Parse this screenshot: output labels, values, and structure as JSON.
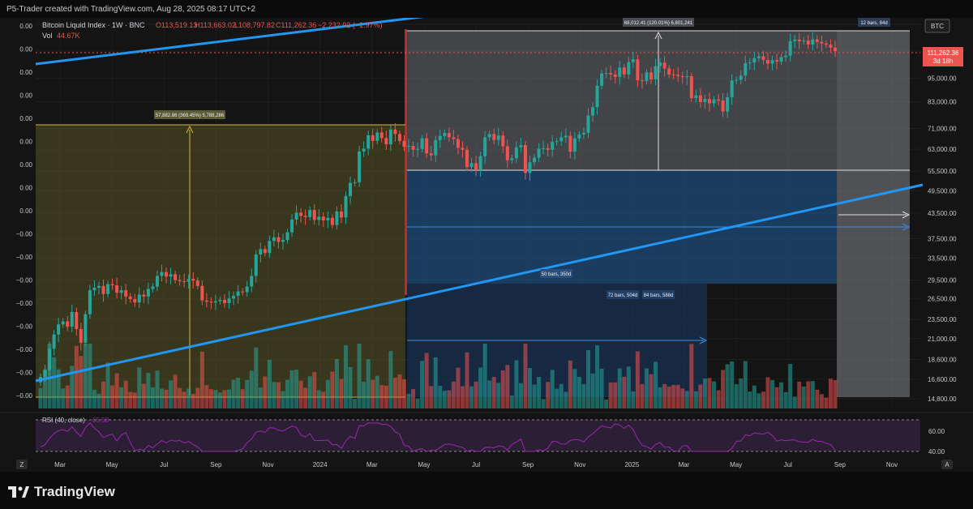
{
  "header": {
    "caption": "P5-Trader created with TradingView.com, Aug 28, 2025 08:17 UTC+2"
  },
  "legend": {
    "symbol": "Bitcoin Liquid Index · 1W · BNC",
    "open": "O113,519.13",
    "high": "H113,663.02",
    "low": "L108,797.82",
    "close": "C111,262.36",
    "change": "−2,232.92 (−1.97%)",
    "vol_label": "Vol",
    "vol_value": "44.67K"
  },
  "price_tag": {
    "ticker": "BTC",
    "price": "111,262.36",
    "countdown": "3d 18h"
  },
  "left_axis_labels": [
    "0.00",
    "0.00",
    "0.00",
    "0.00",
    "0.00",
    "0.00",
    "0.00",
    "0.00",
    "0.00",
    "−0.00",
    "−0.00",
    "−0.00",
    "−0.00",
    "−0.00",
    "−0.00",
    "−0.00",
    "−0.00"
  ],
  "rsi": {
    "label": "RSI (40, close)",
    "value": "65.58",
    "ticks": [
      "60.00",
      "40.00"
    ]
  },
  "measure_labels": {
    "left_box": "57,882.86 (369.45%) 5,788,286",
    "right_box": "68,012.41 (120.01%) 6,801,241",
    "bars_top": "12 bars, 84d",
    "bars_mid": "50 bars, 350d",
    "bars_low_a": "72 bars, 504d",
    "bars_low_b": "84 bars, 588d"
  },
  "footer": {
    "brand": "TradingView",
    "z_button": "Z",
    "a_button": "A"
  },
  "colors": {
    "up": "#26a69a",
    "down": "#ef5350",
    "trend": "#2196f3",
    "yellow_box": "#b5a13a",
    "rsi_line": "#9c27b0"
  },
  "chart_data": {
    "type": "candlestick",
    "title": "Bitcoin Liquid Index · 1W · BNC",
    "yscale": "log",
    "ylim": [
      14000,
      130000
    ],
    "y_ticks": [
      130000,
      111262.36,
      95000,
      83000,
      71000,
      63000,
      55500,
      49500,
      43500,
      37500,
      33500,
      29500,
      26500,
      23500,
      21000,
      18600,
      16600,
      14800
    ],
    "y_tick_labels": [
      "",
      "111,262.36",
      "95,000.00",
      "83,000.00",
      "71,000.00",
      "63,000.00",
      "55,500.00",
      "49,500.00",
      "43,500.00",
      "37,500.00",
      "33,500.00",
      "29,500.00",
      "26,500.00",
      "23,500.00",
      "21,000.00",
      "18,600.00",
      "16,600.00",
      "14,800.00"
    ],
    "x_tick_labels": [
      "Mar",
      "May",
      "Jul",
      "Sep",
      "Nov",
      "2024",
      "Mar",
      "May",
      "Jul",
      "Sep",
      "Nov",
      "2025",
      "Mar",
      "May",
      "Jul",
      "Sep",
      "Nov"
    ],
    "closes": [
      16800,
      17500,
      19800,
      21500,
      22800,
      23200,
      22500,
      24500,
      22200,
      20500,
      24200,
      27800,
      28200,
      28500,
      27200,
      28800,
      28600,
      27400,
      27800,
      26800,
      26400,
      25900,
      27100,
      26800,
      28000,
      28400,
      30200,
      30900,
      30100,
      30500,
      29500,
      29300,
      29200,
      29700,
      29400,
      28500,
      26200,
      26000,
      25900,
      26100,
      26300,
      25800,
      26500,
      26900,
      27600,
      27500,
      28400,
      30200,
      34200,
      35300,
      34500,
      37000,
      37800,
      36800,
      37200,
      38900,
      41900,
      43600,
      42800,
      42500,
      44300,
      41800,
      42600,
      41700,
      42300,
      40600,
      43900,
      42400,
      48000,
      51800,
      52000,
      62200,
      63200,
      68300,
      66100,
      69400,
      67200,
      64800,
      70600,
      68800,
      66100,
      63900,
      64200,
      62800,
      63100,
      67100,
      61500,
      60800,
      66400,
      68000,
      69200,
      67500,
      66800,
      63500,
      62800,
      56800,
      58100,
      55800,
      60500,
      67500,
      68800,
      66500,
      68200,
      64100,
      59100,
      59800,
      63700,
      64500,
      54900,
      58400,
      60000,
      63200,
      63400,
      62800,
      65700,
      66000,
      67500,
      68100,
      62100,
      67100,
      68600,
      69300,
      76600,
      80400,
      91000,
      97800,
      98000,
      97200,
      95800,
      101200,
      97200,
      104400,
      106100,
      94000,
      93600,
      98300,
      94400,
      102000,
      104100,
      100600,
      97200,
      97000,
      96200,
      95700,
      96200,
      84700,
      86100,
      82800,
      84300,
      82200,
      84100,
      83500,
      78400,
      85200,
      93800,
      94200,
      96500,
      103800,
      104200,
      106800,
      108000,
      105700,
      103500,
      105600,
      104700,
      107500,
      108400,
      117900,
      119000,
      117800,
      118300,
      115600,
      119100,
      117400,
      116300,
      115500,
      113500,
      111262
    ]
  }
}
